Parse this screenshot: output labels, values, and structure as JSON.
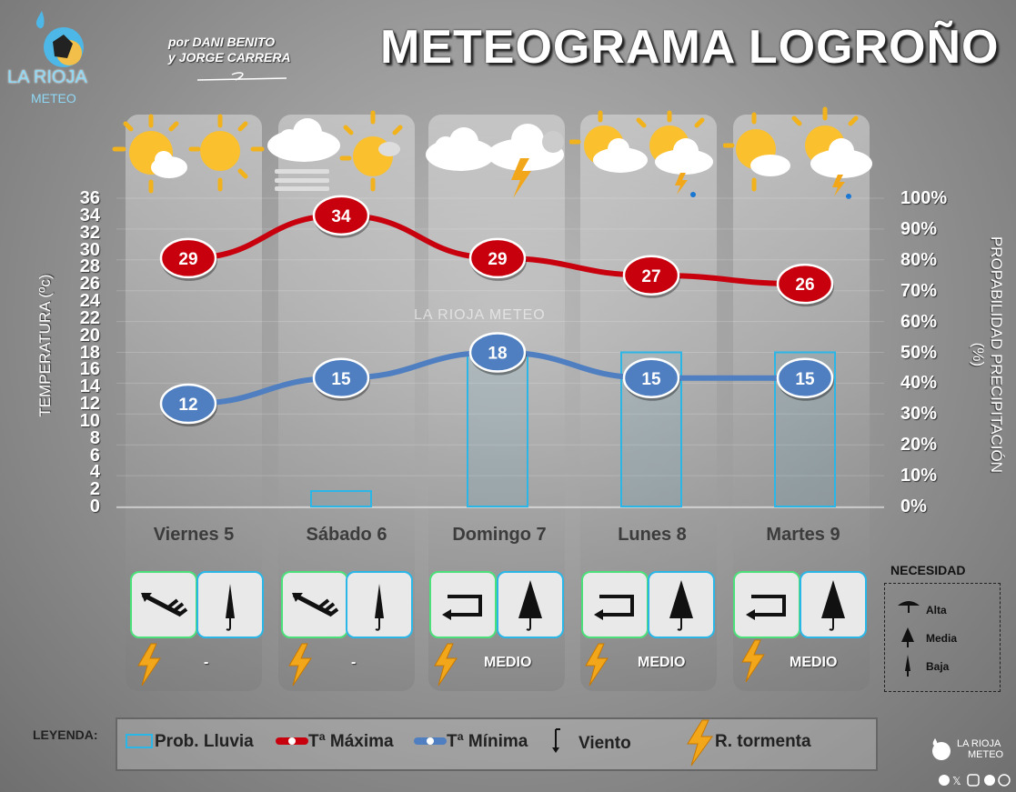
{
  "title": "METEOGRAMA LOGROÑO",
  "byline": [
    "por DANI BENITO",
    "y JORGE CARRERA"
  ],
  "logo": {
    "name": "LA RIOJA",
    "sub": "METEO"
  },
  "watermark": "LA RIOJA METEO",
  "chart_data": {
    "type": "line",
    "categories": [
      "Viernes 5",
      "Sábado 6",
      "Domingo 7",
      "Lunes 8",
      "Martes 9"
    ],
    "series": [
      {
        "name": "Tª Máxima",
        "values": [
          29,
          34,
          29,
          27,
          26
        ],
        "color": "#c8000e"
      },
      {
        "name": "Tª Mínima",
        "values": [
          12,
          15,
          18,
          15,
          15
        ],
        "color": "#4f7fc0"
      },
      {
        "name": "Prob. Lluvia",
        "type": "bar",
        "values": [
          0,
          5,
          50,
          50,
          50
        ],
        "color": "#2ab7e8"
      }
    ],
    "ylabel_left": "TEMPERATURA (ºc)",
    "ylabel_right": "PROPABILIDAD PRECIPITACIÓN (%)",
    "ylim_left": [
      0,
      36
    ],
    "ylim_right": [
      0,
      100
    ],
    "yticks_left": [
      "0",
      "2",
      "4",
      "6",
      "8",
      "10",
      "12",
      "14",
      "16",
      "18",
      "20",
      "22",
      "24",
      "26",
      "28",
      "30",
      "32",
      "34",
      "36"
    ],
    "yticks_right": [
      "0%",
      "10%",
      "20%",
      "30%",
      "40%",
      "50%",
      "60%",
      "70%",
      "80%",
      "90%",
      "100%"
    ]
  },
  "days": [
    {
      "label": "Viernes 5",
      "level": "-"
    },
    {
      "label": "Sábado 6",
      "level": "-"
    },
    {
      "label": "Domingo 7",
      "level": "MEDIO"
    },
    {
      "label": "Lunes 8",
      "level": "MEDIO"
    },
    {
      "label": "Martes 9",
      "level": "MEDIO"
    }
  ],
  "legend": {
    "label": "LEYENDA:",
    "rain": "Prob. Lluvia",
    "tmax": "Tª Máxima",
    "tmin": "Tª Mínima",
    "wind": "Viento",
    "storm": "R. tormenta"
  },
  "necesidad": {
    "title": "NECESIDAD",
    "alta": "Alta",
    "media": "Media",
    "baja": "Baja"
  },
  "brand_corner": [
    "LA RIOJA",
    "METEO"
  ]
}
